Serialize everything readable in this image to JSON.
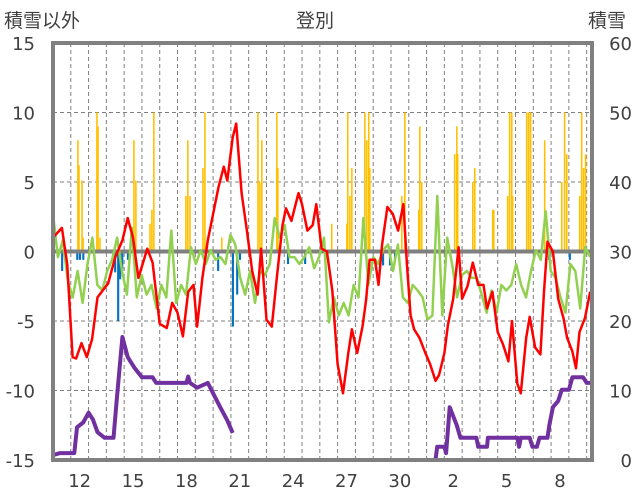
{
  "chart_data": {
    "type": "line",
    "title": "登別",
    "ylabel_left": "積雪以外",
    "ylabel_right": "積雪",
    "y_left": {
      "range": [
        -15,
        15
      ],
      "ticks": [
        15,
        10,
        5,
        0,
        -5,
        -10,
        -15
      ]
    },
    "y_right": {
      "range": [
        0,
        60
      ],
      "ticks": [
        60,
        50,
        40,
        30,
        20,
        10,
        0
      ]
    },
    "x_range_days": [
      0,
      30.3
    ],
    "x_ticks": [
      {
        "day": 1.5,
        "label": "12"
      },
      {
        "day": 4.5,
        "label": "15"
      },
      {
        "day": 7.5,
        "label": "18"
      },
      {
        "day": 10.5,
        "label": "21"
      },
      {
        "day": 13.5,
        "label": "24"
      },
      {
        "day": 16.5,
        "label": "27"
      },
      {
        "day": 19.5,
        "label": "30"
      },
      {
        "day": 22.5,
        "label": "2"
      },
      {
        "day": 25.5,
        "label": "5"
      },
      {
        "day": 28.5,
        "label": "8"
      }
    ],
    "grid": {
      "vertical_every_day": true,
      "horizontal": true
    },
    "colors": {
      "red": "#ff0000",
      "green": "#92d050",
      "yellow": "#ffc000",
      "blue": "#0070c0",
      "purple": "#7030a0",
      "axis": "#808080"
    },
    "bars_positive": [
      [
        1.4,
        8
      ],
      [
        1.46,
        6.2
      ],
      [
        1.63,
        5.1
      ],
      [
        1.69,
        1
      ],
      [
        2.47,
        10
      ],
      [
        2.53,
        9
      ],
      [
        2.64,
        1
      ],
      [
        4.55,
        8
      ],
      [
        4.66,
        5.1
      ],
      [
        5.45,
        2
      ],
      [
        5.56,
        3
      ],
      [
        5.67,
        10
      ],
      [
        7.47,
        4
      ],
      [
        7.58,
        8
      ],
      [
        7.7,
        4
      ],
      [
        8.43,
        6
      ],
      [
        8.54,
        10
      ],
      [
        9.49,
        1
      ],
      [
        11.52,
        10
      ],
      [
        11.63,
        5
      ],
      [
        11.74,
        8
      ],
      [
        12.58,
        10
      ],
      [
        12.64,
        6
      ],
      [
        15.67,
        2
      ],
      [
        16.52,
        2
      ],
      [
        16.57,
        10
      ],
      [
        16.69,
        4
      ],
      [
        16.8,
        6
      ],
      [
        17.53,
        10
      ],
      [
        17.64,
        8
      ],
      [
        17.75,
        10
      ],
      [
        17.81,
        6
      ],
      [
        19.61,
        4
      ],
      [
        19.78,
        10
      ],
      [
        20.56,
        3
      ],
      [
        20.62,
        9
      ],
      [
        20.73,
        5
      ],
      [
        22.58,
        7
      ],
      [
        22.7,
        9
      ],
      [
        22.75,
        7
      ],
      [
        23.6,
        5
      ],
      [
        23.71,
        6
      ],
      [
        24.72,
        3
      ],
      [
        24.78,
        3
      ],
      [
        25.56,
        4
      ],
      [
        25.67,
        10
      ],
      [
        25.79,
        10
      ],
      [
        25.84,
        4
      ],
      [
        26.63,
        10
      ],
      [
        26.74,
        10
      ],
      [
        26.85,
        10
      ],
      [
        27.64,
        8
      ],
      [
        28.6,
        5
      ],
      [
        28.76,
        10
      ],
      [
        28.88,
        7
      ],
      [
        29.61,
        4
      ],
      [
        29.72,
        10
      ],
      [
        29.83,
        6
      ],
      [
        29.94,
        7
      ]
    ],
    "bars_negative": [
      [
        0.5,
        -1.4
      ],
      [
        1.35,
        -0.6
      ],
      [
        1.5,
        -0.6
      ],
      [
        1.69,
        -0.6
      ],
      [
        3.48,
        -1.5
      ],
      [
        3.65,
        -5
      ],
      [
        3.76,
        -2
      ],
      [
        3.88,
        -1.3
      ],
      [
        4.2,
        -0.6
      ],
      [
        9.27,
        -1.4
      ],
      [
        10.1,
        -5.4
      ],
      [
        10.34,
        -3.1
      ],
      [
        10.5,
        -0.6
      ],
      [
        13.2,
        -0.9
      ],
      [
        14.16,
        -0.9
      ],
      [
        18.54,
        -1
      ],
      [
        18.93,
        -1
      ],
      [
        19.21,
        -0.8
      ],
      [
        21.46,
        -0.6
      ],
      [
        27.87,
        -0.6
      ],
      [
        29.04,
        -0.6
      ]
    ],
    "red_series": [
      [
        0,
        1.0
      ],
      [
        0.5,
        1.7
      ],
      [
        0.8,
        -0.9
      ],
      [
        1.1,
        -7.6
      ],
      [
        1.3,
        -7.7
      ],
      [
        1.6,
        -6.6
      ],
      [
        1.9,
        -7.6
      ],
      [
        2.2,
        -6.3
      ],
      [
        2.5,
        -3.3
      ],
      [
        2.8,
        -2.8
      ],
      [
        3.1,
        -2.3
      ],
      [
        3.5,
        -0.4
      ],
      [
        3.9,
        0.8
      ],
      [
        4.2,
        2.4
      ],
      [
        4.5,
        1.0
      ],
      [
        4.8,
        -1.9
      ],
      [
        5.3,
        0.2
      ],
      [
        5.6,
        -0.8
      ],
      [
        6.0,
        -5.2
      ],
      [
        6.4,
        -5.5
      ],
      [
        6.7,
        -3.7
      ],
      [
        7.0,
        -4.4
      ],
      [
        7.3,
        -6.1
      ],
      [
        7.6,
        -2.9
      ],
      [
        7.9,
        -2.4
      ],
      [
        8.1,
        -5.4
      ],
      [
        8.4,
        -1.9
      ],
      [
        8.7,
        0.8
      ],
      [
        9.0,
        2.7
      ],
      [
        9.3,
        4.6
      ],
      [
        9.6,
        6.1
      ],
      [
        9.8,
        5.1
      ],
      [
        10.1,
        8.2
      ],
      [
        10.3,
        9.2
      ],
      [
        10.6,
        4.2
      ],
      [
        10.9,
        1.5
      ],
      [
        11.2,
        -1.4
      ],
      [
        11.5,
        -3.1
      ],
      [
        11.7,
        0.2
      ],
      [
        12.0,
        -4.9
      ],
      [
        12.3,
        -5.4
      ],
      [
        12.6,
        -1.7
      ],
      [
        12.9,
        1.9
      ],
      [
        13.1,
        3.1
      ],
      [
        13.4,
        2.2
      ],
      [
        13.8,
        4.2
      ],
      [
        14.0,
        3.4
      ],
      [
        14.3,
        1.5
      ],
      [
        14.6,
        1.9
      ],
      [
        14.8,
        3.4
      ],
      [
        15.1,
        0.2
      ],
      [
        15.4,
        0
      ],
      [
        15.7,
        -2.8
      ],
      [
        16.0,
        -8.1
      ],
      [
        16.3,
        -10.2
      ],
      [
        16.6,
        -7.3
      ],
      [
        16.8,
        -5.6
      ],
      [
        17.1,
        -7.3
      ],
      [
        17.4,
        -5.4
      ],
      [
        17.6,
        -3.5
      ],
      [
        17.8,
        -0.6
      ],
      [
        18.1,
        -0.6
      ],
      [
        18.3,
        -2.4
      ],
      [
        18.5,
        0.5
      ],
      [
        18.8,
        3.2
      ],
      [
        19.1,
        2.7
      ],
      [
        19.4,
        1.5
      ],
      [
        19.7,
        3.4
      ],
      [
        19.9,
        -1.0
      ],
      [
        20.1,
        -4.6
      ],
      [
        20.3,
        -5.6
      ],
      [
        20.6,
        -6.2
      ],
      [
        20.9,
        -7.2
      ],
      [
        21.2,
        -8.1
      ],
      [
        21.5,
        -9.3
      ],
      [
        21.7,
        -8.9
      ],
      [
        22.0,
        -7.3
      ],
      [
        22.2,
        -5.3
      ],
      [
        22.5,
        -3.4
      ],
      [
        22.8,
        0.3
      ],
      [
        23.0,
        -3.4
      ],
      [
        23.3,
        -2.5
      ],
      [
        23.6,
        -0.8
      ],
      [
        23.9,
        -2.4
      ],
      [
        24.2,
        -2.4
      ],
      [
        24.4,
        -4.1
      ],
      [
        24.7,
        -2.9
      ],
      [
        25.0,
        -5.8
      ],
      [
        25.3,
        -6.7
      ],
      [
        25.6,
        -7.9
      ],
      [
        25.8,
        -5.0
      ],
      [
        26.1,
        -9.5
      ],
      [
        26.3,
        -10.2
      ],
      [
        26.6,
        -6.2
      ],
      [
        26.8,
        -4.7
      ],
      [
        27.1,
        -6.9
      ],
      [
        27.4,
        -7.4
      ],
      [
        27.6,
        -2.9
      ],
      [
        27.8,
        0.7
      ],
      [
        28.1,
        0
      ],
      [
        28.4,
        -3.4
      ],
      [
        28.7,
        -4.8
      ],
      [
        28.9,
        -6.2
      ],
      [
        29.2,
        -7.2
      ],
      [
        29.4,
        -8.4
      ],
      [
        29.6,
        -5.8
      ],
      [
        29.9,
        -4.8
      ],
      [
        30.2,
        -2.9
      ]
    ],
    "green_series": {
      "start_day": 0,
      "step_day": 0.277,
      "values": [
        2.7,
        -0.4,
        0.8,
        -2.1,
        -3.3,
        -1.4,
        -3.7,
        -0.9,
        1.0,
        -2.4,
        -2.8,
        -1.4,
        -0.6,
        1.0,
        -1.4,
        -3.1,
        1.7,
        -3.3,
        -1.7,
        -3.1,
        -2.4,
        -4.1,
        -2.4,
        -3.3,
        1.5,
        -3.7,
        -2.4,
        -3.1,
        0.3,
        -0.9,
        0.1,
        -0.9,
        0.1,
        -0.6,
        -0.4,
        -0.9,
        1.2,
        0.5,
        -1.9,
        -3.1,
        -1.4,
        -3.7,
        -1.4,
        -1.7,
        -0.9,
        2.4,
        1.0,
        1.9,
        -0.4,
        -0.4,
        -0.9,
        -0.4,
        0.3,
        -1.2,
        -0.4,
        1.0,
        -5.1,
        -3.3,
        -4.6,
        -3.7,
        -4.6,
        -2.4,
        -3.3,
        2.4,
        -2.4,
        -0.4,
        -0.9,
        0.1,
        0.5,
        -1.4,
        0.5,
        -3.3,
        -3.7,
        -2.4,
        -2.8,
        -3.3,
        -4.9,
        -4.6,
        4.0,
        -4.6,
        1.0,
        -0.9,
        -3.3,
        -1.7,
        -1.4,
        -1.9,
        -1.9,
        -3.1,
        -4.4,
        -2.8,
        -4.4,
        -2.4,
        -2.8,
        -2.4,
        -0.9,
        -2.4,
        -3.3,
        -1.4,
        0.1,
        -0.6,
        2.9,
        -1.4,
        -1.9,
        -3.3,
        -4.4,
        -0.9,
        -1.4,
        -4.1,
        0.3,
        -0.4
      ]
    },
    "snow_depth_series": [
      [
        [
          0,
          0.7
        ],
        [
          0.4,
          1
        ],
        [
          1.2,
          1
        ],
        [
          1.35,
          4.7
        ],
        [
          1.7,
          5.4
        ],
        [
          2.0,
          6.8
        ],
        [
          2.25,
          5.8
        ],
        [
          2.5,
          4.0
        ],
        [
          2.9,
          3.2
        ],
        [
          3.4,
          3.2
        ],
        [
          3.6,
          9.1
        ],
        [
          3.9,
          17.7
        ],
        [
          4.2,
          14.8
        ],
        [
          4.6,
          13.2
        ],
        [
          5.0,
          11.9
        ],
        [
          5.6,
          11.9
        ],
        [
          5.8,
          11.1
        ],
        [
          7.5,
          11.1
        ],
        [
          7.6,
          12
        ],
        [
          7.7,
          11.1
        ],
        [
          8.1,
          10.4
        ],
        [
          8.7,
          11.1
        ],
        [
          9.0,
          9.6
        ],
        [
          9.4,
          7.6
        ],
        [
          9.8,
          5.7
        ],
        [
          10.1,
          3.9
        ]
      ],
      [
        [
          11.5,
          0
        ],
        [
          21.5,
          0
        ],
        [
          21.6,
          1.9
        ],
        [
          22.0,
          1.9
        ],
        [
          22.1,
          1.0
        ],
        [
          22.3,
          7.6
        ],
        [
          22.7,
          5.0
        ],
        [
          22.9,
          3.2
        ],
        [
          23.8,
          3.2
        ],
        [
          23.9,
          1.9
        ],
        [
          24.4,
          1.9
        ],
        [
          24.45,
          3.2
        ],
        [
          26.1,
          3.2
        ],
        [
          26.2,
          1.9
        ],
        [
          26.3,
          3.2
        ],
        [
          26.8,
          3.2
        ],
        [
          26.95,
          1.9
        ],
        [
          27.2,
          1.9
        ],
        [
          27.35,
          3.2
        ],
        [
          27.8,
          3.2
        ],
        [
          27.9,
          5.0
        ],
        [
          28.1,
          7.6
        ],
        [
          28.4,
          8.5
        ],
        [
          28.6,
          10.1
        ],
        [
          29.0,
          10.1
        ],
        [
          29.2,
          11.9
        ],
        [
          29.8,
          11.9
        ],
        [
          30.0,
          11.1
        ],
        [
          30.3,
          11.1
        ]
      ]
    ]
  }
}
